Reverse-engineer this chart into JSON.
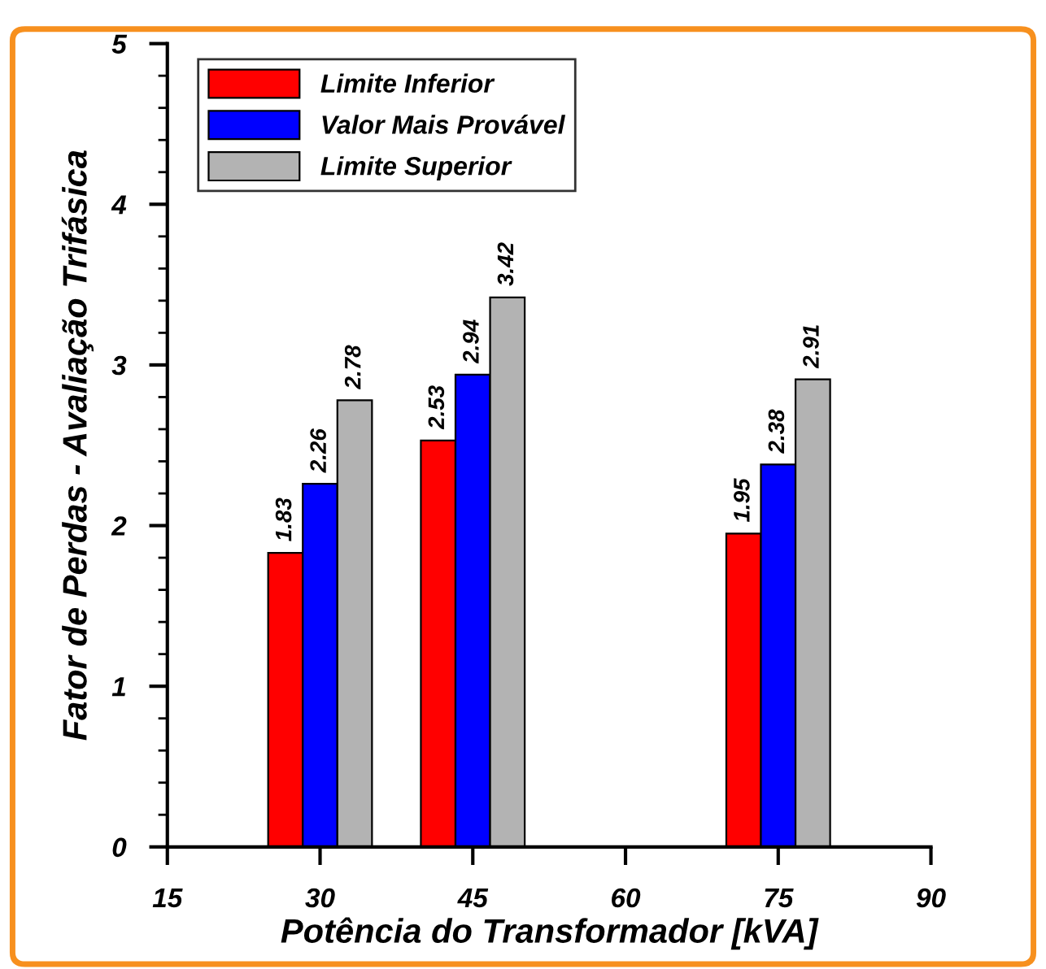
{
  "chart_data": {
    "type": "bar",
    "xlabel": "Potência do Transformador [kVA]",
    "ylabel": "Fator de Perdas - Avaliação Trifásica",
    "x": [
      30,
      45,
      75
    ],
    "series": [
      {
        "name": "Limite Inferior",
        "color": "#ff0000",
        "values": [
          1.83,
          2.53,
          1.95
        ]
      },
      {
        "name": "Valor Mais Provável",
        "color": "#0000ff",
        "values": [
          2.26,
          2.94,
          2.38
        ]
      },
      {
        "name": "Limite Superior",
        "color": "#b3b3b3",
        "values": [
          2.78,
          3.42,
          2.91
        ]
      }
    ],
    "xlim": [
      15,
      90
    ],
    "xticks": [
      15,
      30,
      45,
      60,
      75,
      90
    ],
    "ylim": [
      0,
      5
    ],
    "yticks": [
      0,
      1,
      2,
      3,
      4,
      5
    ],
    "data_labels": true,
    "legend": "top left",
    "grid": false
  }
}
